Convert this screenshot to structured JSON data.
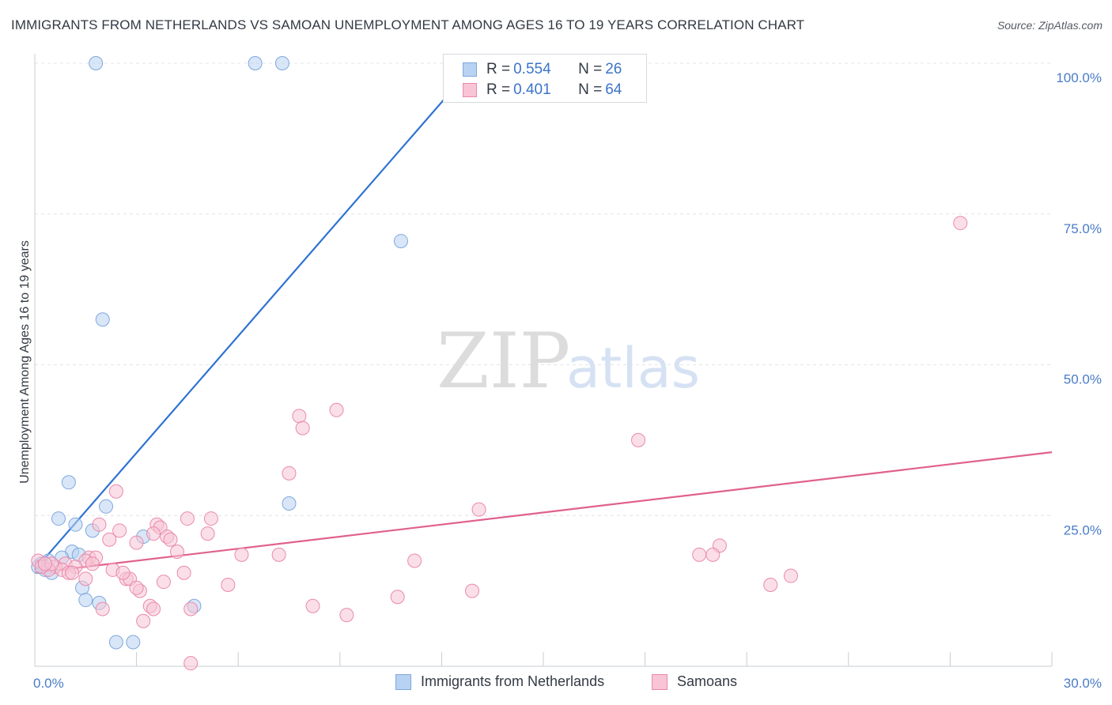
{
  "title": "IMMIGRANTS FROM NETHERLANDS VS SAMOAN UNEMPLOYMENT AMONG AGES 16 TO 19 YEARS CORRELATION CHART",
  "source": "Source: ZipAtlas.com",
  "watermark": {
    "zip": "ZIP",
    "atlas": "atlas"
  },
  "legend": {
    "series1": {
      "r_label": "R = ",
      "r_value": "0.554",
      "n_label": "N = ",
      "n_value": "26"
    },
    "series2": {
      "r_label": "R = ",
      "r_value": "0.401",
      "n_label": "N = ",
      "n_value": "64"
    }
  },
  "colors": {
    "blue_fill": "#b8d2f3",
    "blue_stroke": "#7fa8dc",
    "blue_line": "#2f73d2",
    "pink_fill": "#f8c4d6",
    "pink_stroke": "#e98aab",
    "pink_line": "#e0608e",
    "grid": "#e2e4e8"
  },
  "chart_data": {
    "type": "scatter",
    "title": "IMMIGRANTS FROM NETHERLANDS VS SAMOAN UNEMPLOYMENT AMONG AGES 16 TO 19 YEARS CORRELATION CHART",
    "xlabel": "",
    "ylabel": "Unemployment Among Ages 16 to 19 years",
    "xlim": [
      0,
      30
    ],
    "ylim": [
      0,
      100
    ],
    "x_tick_labels": [
      {
        "value": 0,
        "label": "0.0%"
      },
      {
        "value": 30,
        "label": "30.0%"
      }
    ],
    "y_tick_labels": [
      {
        "value": 25,
        "label": "25.0%"
      },
      {
        "value": 50,
        "label": "50.0%"
      },
      {
        "value": 75,
        "label": "75.0%"
      },
      {
        "value": 100,
        "label": "100.0%"
      }
    ],
    "series": [
      {
        "name": "Immigrants from Netherlands",
        "color": "blue",
        "points": [
          [
            1.8,
            100
          ],
          [
            6.5,
            100
          ],
          [
            7.3,
            100
          ],
          [
            10.8,
            70.5
          ],
          [
            2.0,
            57.5
          ],
          [
            1.0,
            30.5
          ],
          [
            0.7,
            24.5
          ],
          [
            1.2,
            23.5
          ],
          [
            2.1,
            26.5
          ],
          [
            7.5,
            27.0
          ],
          [
            1.7,
            22.5
          ],
          [
            3.2,
            21.5
          ],
          [
            1.1,
            19.0
          ],
          [
            1.3,
            18.5
          ],
          [
            0.8,
            18.0
          ],
          [
            0.2,
            17.0
          ],
          [
            0.3,
            16.0
          ],
          [
            0.5,
            15.5
          ],
          [
            0.1,
            16.5
          ],
          [
            1.4,
            13.0
          ],
          [
            1.5,
            11.0
          ],
          [
            1.9,
            10.5
          ],
          [
            4.7,
            10.0
          ],
          [
            2.4,
            4.0
          ],
          [
            2.9,
            4.0
          ],
          [
            0.4,
            17.5
          ]
        ],
        "trend": {
          "x1": 0.0,
          "y1": 16.0,
          "x2": 13.0,
          "y2": 100.0
        }
      },
      {
        "name": "Samoans",
        "color": "pink",
        "points": [
          [
            27.3,
            73.5
          ],
          [
            8.9,
            42.5
          ],
          [
            7.8,
            41.5
          ],
          [
            7.9,
            39.5
          ],
          [
            17.8,
            37.5
          ],
          [
            7.5,
            32.0
          ],
          [
            2.4,
            29.0
          ],
          [
            13.1,
            26.0
          ],
          [
            4.5,
            24.5
          ],
          [
            5.2,
            24.5
          ],
          [
            1.9,
            23.5
          ],
          [
            3.6,
            23.5
          ],
          [
            3.7,
            23.0
          ],
          [
            2.5,
            22.5
          ],
          [
            3.5,
            22.0
          ],
          [
            5.1,
            22.0
          ],
          [
            2.2,
            21.0
          ],
          [
            3.9,
            21.5
          ],
          [
            3.0,
            20.5
          ],
          [
            4.0,
            21.0
          ],
          [
            20.2,
            20.0
          ],
          [
            4.2,
            19.0
          ],
          [
            6.1,
            18.5
          ],
          [
            7.2,
            18.5
          ],
          [
            19.6,
            18.5
          ],
          [
            20.0,
            18.5
          ],
          [
            11.2,
            17.5
          ],
          [
            1.6,
            18.0
          ],
          [
            1.8,
            18.0
          ],
          [
            1.5,
            17.5
          ],
          [
            1.7,
            17.0
          ],
          [
            0.9,
            17.0
          ],
          [
            1.2,
            16.5
          ],
          [
            0.6,
            16.5
          ],
          [
            0.4,
            16.0
          ],
          [
            0.8,
            16.0
          ],
          [
            1.0,
            15.5
          ],
          [
            1.1,
            15.5
          ],
          [
            2.3,
            16.0
          ],
          [
            4.4,
            15.5
          ],
          [
            22.3,
            15.0
          ],
          [
            2.7,
            14.5
          ],
          [
            2.8,
            14.5
          ],
          [
            1.5,
            14.5
          ],
          [
            3.8,
            14.0
          ],
          [
            5.7,
            13.5
          ],
          [
            21.7,
            13.5
          ],
          [
            3.1,
            12.5
          ],
          [
            3.0,
            13.0
          ],
          [
            12.9,
            12.5
          ],
          [
            10.7,
            11.5
          ],
          [
            3.4,
            10.0
          ],
          [
            8.2,
            10.0
          ],
          [
            4.6,
            9.5
          ],
          [
            2.0,
            9.5
          ],
          [
            3.5,
            9.5
          ],
          [
            9.2,
            8.5
          ],
          [
            3.2,
            7.5
          ],
          [
            4.6,
            0.5
          ],
          [
            0.1,
            17.5
          ],
          [
            0.2,
            16.5
          ],
          [
            0.5,
            17.0
          ],
          [
            0.3,
            17.0
          ],
          [
            2.6,
            15.5
          ]
        ],
        "trend": {
          "x1": 0.0,
          "y1": 15.5,
          "x2": 30.0,
          "y2": 35.5
        }
      }
    ]
  }
}
